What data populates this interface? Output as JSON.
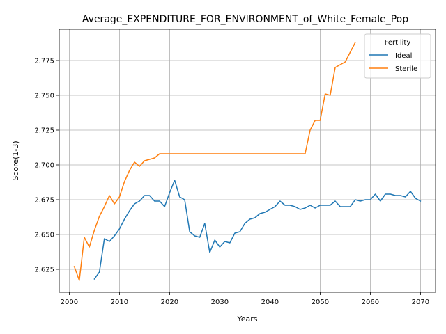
{
  "chart_data": {
    "type": "line",
    "title": "Average_EXPENDITURE_FOR_ENVIRONMENT_of_White_Female_Pop",
    "xlabel": "Years",
    "ylabel": "Score(1-3)",
    "xlim": [
      1998,
      2073
    ],
    "ylim": [
      2.6085,
      2.7975
    ],
    "xticks": [
      2000,
      2010,
      2020,
      2030,
      2040,
      2050,
      2060,
      2070
    ],
    "yticks": [
      2.625,
      2.65,
      2.675,
      2.7,
      2.725,
      2.75,
      2.775
    ],
    "ytick_labels": [
      "2.625",
      "2.650",
      "2.675",
      "2.700",
      "2.725",
      "2.750",
      "2.775"
    ],
    "grid": true,
    "legend": {
      "title": "Fertility",
      "position": "top-right"
    },
    "series": [
      {
        "name": "Ideal",
        "color": "#1f77b4",
        "x": [
          2005,
          2006,
          2007,
          2008,
          2009,
          2010,
          2011,
          2012,
          2013,
          2014,
          2015,
          2016,
          2017,
          2018,
          2019,
          2020,
          2021,
          2022,
          2023,
          2024,
          2025,
          2026,
          2027,
          2028,
          2029,
          2030,
          2031,
          2032,
          2033,
          2034,
          2035,
          2036,
          2037,
          2038,
          2039,
          2040,
          2041,
          2042,
          2043,
          2044,
          2045,
          2046,
          2047,
          2048,
          2049,
          2050,
          2051,
          2052,
          2053,
          2054,
          2055,
          2056,
          2057,
          2058,
          2059,
          2060,
          2061,
          2062,
          2063,
          2064,
          2065,
          2066,
          2067,
          2068,
          2069,
          2070
        ],
        "values": [
          2.618,
          2.623,
          2.647,
          2.645,
          2.649,
          2.654,
          2.661,
          2.667,
          2.672,
          2.674,
          2.678,
          2.678,
          2.674,
          2.674,
          2.67,
          2.68,
          2.689,
          2.677,
          2.675,
          2.652,
          2.649,
          2.648,
          2.658,
          2.637,
          2.646,
          2.641,
          2.645,
          2.644,
          2.651,
          2.652,
          2.658,
          2.661,
          2.662,
          2.665,
          2.666,
          2.668,
          2.67,
          2.674,
          2.671,
          2.671,
          2.67,
          2.668,
          2.669,
          2.671,
          2.669,
          2.671,
          2.671,
          2.671,
          2.674,
          2.67,
          2.67,
          2.67,
          2.675,
          2.674,
          2.675,
          2.675,
          2.679,
          2.674,
          2.679,
          2.679,
          2.678,
          2.678,
          2.677,
          2.681,
          2.676,
          2.674
        ]
      },
      {
        "name": "Sterile",
        "color": "#ff7f0e",
        "x": [
          2001,
          2002,
          2003,
          2004,
          2005,
          2006,
          2007,
          2008,
          2009,
          2010,
          2011,
          2012,
          2013,
          2014,
          2015,
          2016,
          2017,
          2018,
          2019,
          2020,
          2025,
          2030,
          2035,
          2040,
          2045,
          2047,
          2048,
          2049,
          2050,
          2051,
          2052,
          2053,
          2054,
          2055,
          2056,
          2057
        ],
        "values": [
          2.627,
          2.617,
          2.648,
          2.641,
          2.653,
          2.663,
          2.67,
          2.678,
          2.672,
          2.677,
          2.688,
          2.696,
          2.702,
          2.699,
          2.703,
          2.704,
          2.705,
          2.708,
          2.708,
          2.708,
          2.708,
          2.708,
          2.708,
          2.708,
          2.708,
          2.708,
          2.725,
          2.732,
          2.732,
          2.751,
          2.75,
          2.77,
          2.772,
          2.774,
          2.781,
          2.788
        ]
      }
    ]
  }
}
